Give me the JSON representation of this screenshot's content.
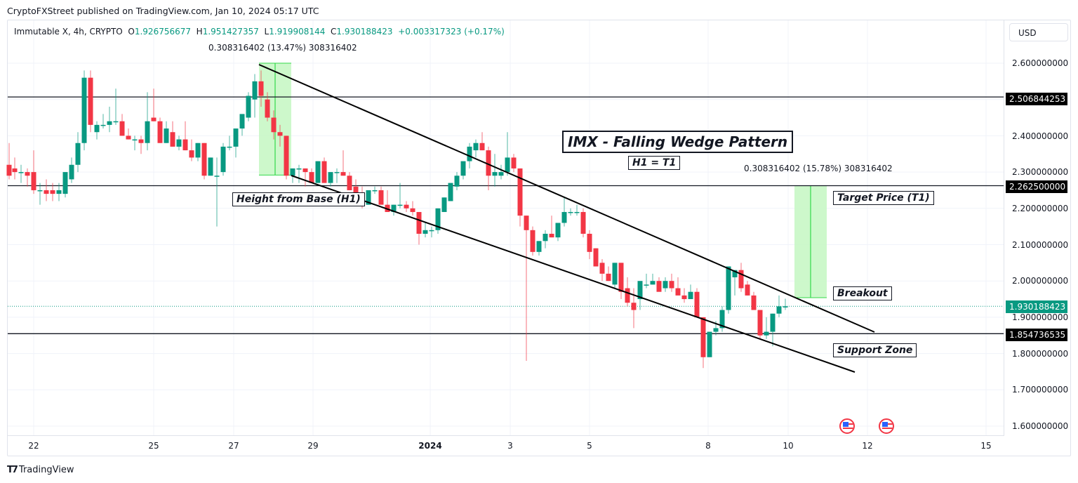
{
  "publisher": "CryptoFXStreet published on TradingView.com, Jan 10, 2024 05:17 UTC",
  "legend": {
    "symbol": "Immutable X, 4h, CRYPTO",
    "o_label": "O",
    "o": "1.926756677",
    "h_label": "H",
    "h": "1.951427357",
    "l_label": "L",
    "l": "1.919908144",
    "c_label": "C",
    "c": "1.930188423",
    "change": "+0.003317323 (+0.17%)"
  },
  "currency_button": "USD",
  "measure_labels": {
    "h1": "0.308316402 (13.47%) 308316402",
    "t1": "0.308316402 (15.78%) 308316402"
  },
  "annotations": {
    "title": "IMX - Falling Wedge Pattern",
    "formula": "H1 = T1",
    "height_from_base": "Height from Base (H1)",
    "target_price": "Target Price (T1)",
    "breakout": "Breakout",
    "support_zone": "Support Zone"
  },
  "price_axis": {
    "ticks": [
      "2.600000000",
      "2.400000000",
      "2.300000000",
      "2.200000000",
      "2.100000000",
      "2.000000000",
      "1.900000000",
      "1.800000000",
      "1.700000000",
      "1.600000000"
    ],
    "tags": {
      "resistance": "2.506844253",
      "target": "2.262500000",
      "current": "1.930188423",
      "support": "1.854736535"
    }
  },
  "time_axis": {
    "ticks": [
      "22",
      "25",
      "27",
      "29",
      "2024",
      "3",
      "5",
      "8",
      "10",
      "12",
      "15"
    ]
  },
  "branding": "TradingView",
  "colors": {
    "up": "#089981",
    "down": "#f23645",
    "measure_fill": "#c8f7c5",
    "measure_line": "#33d94a"
  },
  "chart_data": {
    "type": "candlestick",
    "title": "IMX - Falling Wedge Pattern",
    "symbol": "Immutable X, 4h, CRYPTO",
    "xlabel": "",
    "ylabel": "USD",
    "ylim": [
      1.55,
      2.65
    ],
    "x_ticks": [
      "22",
      "25",
      "27",
      "29",
      "2024",
      "3",
      "5",
      "8",
      "10",
      "12",
      "15"
    ],
    "horizontal_levels": [
      2.506844253,
      2.2625,
      1.854736535
    ],
    "current_price": 1.930188423,
    "wedge_upper_line": [
      [
        2.6,
        "Dec 27"
      ],
      [
        1.855,
        "Jan 12"
      ]
    ],
    "wedge_lower_line": [
      [
        2.29,
        "Dec 28"
      ],
      [
        1.75,
        "Jan 12"
      ]
    ],
    "h1_measure": {
      "from": 2.2917,
      "to": 2.6,
      "delta": 0.308316402,
      "pct": "13.47%"
    },
    "t1_measure": {
      "from": 1.954,
      "to": 2.2625,
      "delta": 0.308316402,
      "pct": "15.78%"
    },
    "candles": [
      [
        13,
        2.32,
        2.38,
        2.28,
        2.29
      ],
      [
        21,
        2.31,
        2.34,
        2.28,
        2.3
      ],
      [
        30,
        2.3,
        2.32,
        2.27,
        2.3
      ],
      [
        39,
        2.3,
        2.31,
        2.26,
        2.29
      ],
      [
        48,
        2.3,
        2.36,
        2.24,
        2.25
      ],
      [
        57,
        2.25,
        2.27,
        2.21,
        2.25
      ],
      [
        66,
        2.25,
        2.28,
        2.22,
        2.24
      ],
      [
        75,
        2.25,
        2.27,
        2.22,
        2.24
      ],
      [
        84,
        2.24,
        2.27,
        2.22,
        2.25
      ],
      [
        93,
        2.24,
        2.29,
        2.23,
        2.3
      ],
      [
        102,
        2.28,
        2.34,
        2.27,
        2.32
      ],
      [
        111,
        2.32,
        2.41,
        2.3,
        2.38
      ],
      [
        120,
        2.38,
        2.58,
        2.36,
        2.56
      ],
      [
        129,
        2.56,
        2.58,
        2.41,
        2.43
      ],
      [
        138,
        2.41,
        2.44,
        2.39,
        2.43
      ],
      [
        147,
        2.43,
        2.46,
        2.42,
        2.43
      ],
      [
        156,
        2.43,
        2.48,
        2.41,
        2.44
      ],
      [
        165,
        2.44,
        2.53,
        2.43,
        2.44
      ],
      [
        174,
        2.44,
        2.46,
        2.4,
        2.4
      ],
      [
        183,
        2.4,
        2.42,
        2.39,
        2.39
      ],
      [
        192,
        2.39,
        2.4,
        2.36,
        2.39
      ],
      [
        201,
        2.39,
        2.4,
        2.35,
        2.38
      ],
      [
        210,
        2.38,
        2.52,
        2.36,
        2.44
      ],
      [
        219,
        2.45,
        2.53,
        2.44,
        2.44
      ],
      [
        228,
        2.44,
        2.45,
        2.38,
        2.38
      ],
      [
        237,
        2.38,
        2.44,
        2.38,
        2.42
      ],
      [
        246,
        2.41,
        2.44,
        2.37,
        2.37
      ],
      [
        255,
        2.37,
        2.4,
        2.36,
        2.39
      ],
      [
        264,
        2.39,
        2.44,
        2.36,
        2.36
      ],
      [
        273,
        2.36,
        2.39,
        2.33,
        2.34
      ],
      [
        282,
        2.34,
        2.38,
        2.33,
        2.38
      ],
      [
        291,
        2.38,
        2.38,
        2.28,
        2.29
      ],
      [
        300,
        2.29,
        2.34,
        2.29,
        2.34
      ],
      [
        309,
        2.29,
        2.34,
        2.15,
        2.29
      ],
      [
        318,
        2.3,
        2.38,
        2.29,
        2.37
      ],
      [
        327,
        2.37,
        2.4,
        2.36,
        2.37
      ],
      [
        336,
        2.37,
        2.42,
        2.34,
        2.42
      ],
      [
        345,
        2.42,
        2.45,
        2.4,
        2.46
      ],
      [
        354,
        2.45,
        2.52,
        2.44,
        2.51
      ],
      [
        363,
        2.5,
        2.57,
        2.45,
        2.55
      ],
      [
        372,
        2.55,
        2.58,
        2.48,
        2.51
      ],
      [
        381,
        2.5,
        2.52,
        2.44,
        2.45
      ],
      [
        390,
        2.45,
        2.47,
        2.39,
        2.41
      ],
      [
        399,
        2.41,
        2.43,
        2.37,
        2.4
      ],
      [
        408,
        2.4,
        2.4,
        2.28,
        2.29
      ],
      [
        417,
        2.29,
        2.31,
        2.27,
        2.31
      ],
      [
        426,
        2.31,
        2.32,
        2.27,
        2.31
      ],
      [
        435,
        2.31,
        2.31,
        2.26,
        2.3
      ],
      [
        444,
        2.3,
        2.31,
        2.27,
        2.27
      ],
      [
        453,
        2.27,
        2.33,
        2.27,
        2.33
      ],
      [
        462,
        2.33,
        2.34,
        2.27,
        2.27
      ],
      [
        471,
        2.27,
        2.3,
        2.26,
        2.3
      ],
      [
        480,
        2.3,
        2.31,
        2.27,
        2.3
      ],
      [
        489,
        2.3,
        2.36,
        2.29,
        2.29
      ],
      [
        498,
        2.29,
        2.3,
        2.25,
        2.25
      ],
      [
        507,
        2.26,
        2.28,
        2.24,
        2.24
      ],
      [
        516,
        2.24,
        2.26,
        2.2,
        2.21
      ],
      [
        525,
        2.21,
        2.25,
        2.21,
        2.25
      ],
      [
        534,
        2.25,
        2.26,
        2.24,
        2.25
      ],
      [
        543,
        2.25,
        2.26,
        2.21,
        2.21
      ],
      [
        552,
        2.21,
        2.25,
        2.19,
        2.19
      ],
      [
        561,
        2.19,
        2.21,
        2.18,
        2.21
      ],
      [
        570,
        2.21,
        2.27,
        2.2,
        2.21
      ],
      [
        579,
        2.21,
        2.22,
        2.19,
        2.2
      ],
      [
        588,
        2.2,
        2.22,
        2.18,
        2.19
      ],
      [
        597,
        2.19,
        2.19,
        2.1,
        2.13
      ],
      [
        606,
        2.13,
        2.16,
        2.12,
        2.14
      ],
      [
        615,
        2.14,
        2.15,
        2.12,
        2.14
      ],
      [
        624,
        2.14,
        2.2,
        2.13,
        2.2
      ],
      [
        633,
        2.19,
        2.23,
        2.19,
        2.23
      ],
      [
        642,
        2.22,
        2.26,
        2.22,
        2.27
      ],
      [
        651,
        2.26,
        2.3,
        2.25,
        2.29
      ],
      [
        660,
        2.29,
        2.31,
        2.28,
        2.33
      ],
      [
        669,
        2.33,
        2.38,
        2.31,
        2.37
      ],
      [
        678,
        2.36,
        2.39,
        2.34,
        2.38
      ],
      [
        687,
        2.38,
        2.41,
        2.36,
        2.36
      ],
      [
        696,
        2.36,
        2.37,
        2.25,
        2.29
      ],
      [
        705,
        2.29,
        2.35,
        2.26,
        2.3
      ],
      [
        714,
        2.29,
        2.32,
        2.28,
        2.3
      ],
      [
        723,
        2.3,
        2.41,
        2.29,
        2.34
      ],
      [
        732,
        2.34,
        2.35,
        2.3,
        2.31
      ],
      [
        741,
        2.31,
        2.31,
        2.15,
        2.18
      ],
      [
        750,
        2.18,
        2.18,
        1.78,
        2.14
      ],
      [
        759,
        2.14,
        2.15,
        2.07,
        2.08
      ],
      [
        768,
        2.08,
        2.11,
        2.07,
        2.11
      ],
      [
        777,
        2.11,
        2.14,
        2.09,
        2.13
      ],
      [
        786,
        2.13,
        2.18,
        2.12,
        2.12
      ],
      [
        795,
        2.12,
        2.15,
        2.11,
        2.16
      ],
      [
        804,
        2.16,
        2.23,
        2.15,
        2.19
      ],
      [
        813,
        2.19,
        2.2,
        2.18,
        2.19
      ],
      [
        822,
        2.19,
        2.21,
        2.18,
        2.19
      ],
      [
        831,
        2.19,
        2.2,
        2.12,
        2.13
      ],
      [
        840,
        2.13,
        2.14,
        2.06,
        2.08
      ],
      [
        849,
        2.09,
        2.09,
        2.04,
        2.04
      ],
      [
        858,
        2.05,
        2.06,
        2.0,
        2.02
      ],
      [
        867,
        2.02,
        2.04,
        2.0,
        2.0
      ],
      [
        876,
        1.99,
        2.05,
        1.98,
        2.05
      ],
      [
        885,
        2.05,
        2.05,
        1.95,
        1.97
      ],
      [
        894,
        1.98,
        2.01,
        1.93,
        1.94
      ],
      [
        903,
        1.94,
        1.98,
        1.87,
        1.92
      ],
      [
        912,
        1.95,
        1.99,
        1.92,
        2.0
      ],
      [
        921,
        1.99,
        2.02,
        1.98,
        1.99
      ],
      [
        930,
        1.99,
        2.02,
        1.99,
        2.0
      ],
      [
        939,
        2.0,
        2.01,
        1.99,
        1.97
      ],
      [
        948,
        1.98,
        2.01,
        1.97,
        2.0
      ],
      [
        957,
        2.0,
        2.02,
        1.97,
        1.98
      ],
      [
        966,
        1.98,
        2.01,
        1.97,
        1.96
      ],
      [
        975,
        1.96,
        1.98,
        1.94,
        1.95
      ],
      [
        984,
        1.95,
        1.99,
        1.95,
        1.97
      ],
      [
        993,
        1.97,
        1.98,
        1.92,
        1.9
      ],
      [
        1002,
        1.9,
        1.9,
        1.76,
        1.79
      ],
      [
        1011,
        1.79,
        1.86,
        1.79,
        1.86
      ],
      [
        1020,
        1.86,
        1.89,
        1.85,
        1.87
      ],
      [
        1029,
        1.87,
        1.93,
        1.86,
        1.92
      ],
      [
        1038,
        1.92,
        2.02,
        1.91,
        2.04
      ],
      [
        1047,
        2.01,
        2.03,
        1.96,
        2.03
      ],
      [
        1056,
        2.03,
        2.05,
        1.97,
        1.98
      ],
      [
        1065,
        1.99,
        2.0,
        1.96,
        1.96
      ],
      [
        1074,
        1.96,
        1.97,
        1.92,
        1.92
      ],
      [
        1083,
        1.92,
        1.9,
        1.84,
        1.85
      ],
      [
        1092,
        1.85,
        1.9,
        1.84,
        1.86
      ],
      [
        1101,
        1.86,
        1.91,
        1.82,
        1.91
      ],
      [
        1110,
        1.91,
        1.96,
        1.9,
        1.93
      ],
      [
        1119,
        1.927,
        1.951,
        1.92,
        1.93
      ]
    ]
  }
}
